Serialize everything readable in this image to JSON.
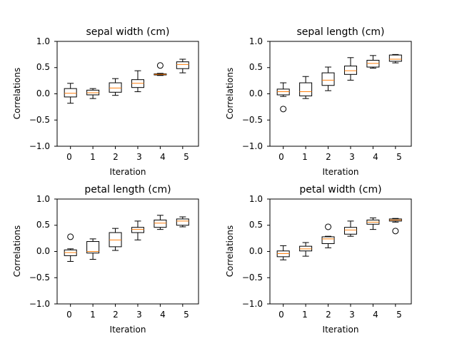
{
  "chart_data": [
    {
      "type": "box",
      "title": "sepal width (cm)",
      "xlabel": "Iteration",
      "ylabel": "Correlations",
      "categories": [
        "0",
        "1",
        "2",
        "3",
        "4",
        "5"
      ],
      "ylim": [
        -1.0,
        1.0
      ],
      "yticks": [
        "−1.0",
        "−0.5",
        "0.0",
        "0.5",
        "1.0"
      ],
      "grid": false,
      "boxes": [
        {
          "whislo": -0.18,
          "q1": -0.06,
          "median": 0.01,
          "q3": 0.1,
          "whishi": 0.2,
          "fliers": []
        },
        {
          "whislo": -0.09,
          "q1": -0.02,
          "median": 0.02,
          "q3": 0.07,
          "whishi": 0.1,
          "fliers": []
        },
        {
          "whislo": -0.03,
          "q1": 0.03,
          "median": 0.11,
          "q3": 0.21,
          "whishi": 0.29,
          "fliers": []
        },
        {
          "whislo": 0.04,
          "q1": 0.12,
          "median": 0.2,
          "q3": 0.27,
          "whishi": 0.44,
          "fliers": []
        },
        {
          "whislo": 0.35,
          "q1": 0.36,
          "median": 0.37,
          "q3": 0.38,
          "whishi": 0.39,
          "fliers": [
            0.54
          ]
        },
        {
          "whislo": 0.4,
          "q1": 0.48,
          "median": 0.56,
          "q3": 0.61,
          "whishi": 0.66,
          "fliers": []
        }
      ]
    },
    {
      "type": "box",
      "title": "sepal length (cm)",
      "xlabel": "Iteration",
      "ylabel": "Correlations",
      "categories": [
        "0",
        "1",
        "2",
        "3",
        "4",
        "5"
      ],
      "ylim": [
        -1.0,
        1.0
      ],
      "yticks": [
        "−1.0",
        "−0.5",
        "0.0",
        "0.5",
        "1.0"
      ],
      "grid": false,
      "boxes": [
        {
          "whislo": -0.05,
          "q1": -0.02,
          "median": 0.04,
          "q3": 0.09,
          "whishi": 0.21,
          "fliers": [
            -0.29
          ]
        },
        {
          "whislo": -0.09,
          "q1": -0.04,
          "median": 0.04,
          "q3": 0.21,
          "whishi": 0.33,
          "fliers": []
        },
        {
          "whislo": 0.06,
          "q1": 0.16,
          "median": 0.26,
          "q3": 0.4,
          "whishi": 0.51,
          "fliers": []
        },
        {
          "whislo": 0.26,
          "q1": 0.37,
          "median": 0.44,
          "q3": 0.53,
          "whishi": 0.69,
          "fliers": []
        },
        {
          "whislo": 0.49,
          "q1": 0.51,
          "median": 0.58,
          "q3": 0.64,
          "whishi": 0.73,
          "fliers": []
        },
        {
          "whislo": 0.59,
          "q1": 0.62,
          "median": 0.66,
          "q3": 0.74,
          "whishi": 0.75,
          "fliers": []
        }
      ]
    },
    {
      "type": "box",
      "title": "petal length (cm)",
      "xlabel": "Iteration",
      "ylabel": "Correlations",
      "categories": [
        "0",
        "1",
        "2",
        "3",
        "4",
        "5"
      ],
      "ylim": [
        -1.0,
        1.0
      ],
      "yticks": [
        "−1.0",
        "−0.5",
        "0.0",
        "0.5",
        "1.0"
      ],
      "grid": false,
      "boxes": [
        {
          "whislo": -0.19,
          "q1": -0.08,
          "median": -0.02,
          "q3": 0.03,
          "whishi": 0.05,
          "fliers": [
            0.28
          ]
        },
        {
          "whislo": -0.15,
          "q1": -0.03,
          "median": 0.0,
          "q3": 0.19,
          "whishi": 0.24,
          "fliers": []
        },
        {
          "whislo": 0.02,
          "q1": 0.09,
          "median": 0.22,
          "q3": 0.36,
          "whishi": 0.44,
          "fliers": []
        },
        {
          "whislo": 0.22,
          "q1": 0.36,
          "median": 0.42,
          "q3": 0.46,
          "whishi": 0.58,
          "fliers": []
        },
        {
          "whislo": 0.42,
          "q1": 0.46,
          "median": 0.54,
          "q3": 0.6,
          "whishi": 0.69,
          "fliers": []
        },
        {
          "whislo": 0.47,
          "q1": 0.5,
          "median": 0.58,
          "q3": 0.62,
          "whishi": 0.66,
          "fliers": []
        }
      ]
    },
    {
      "type": "box",
      "title": "petal width (cm)",
      "xlabel": "Iteration",
      "ylabel": "Correlations",
      "categories": [
        "0",
        "1",
        "2",
        "3",
        "4",
        "5"
      ],
      "ylim": [
        -1.0,
        1.0
      ],
      "yticks": [
        "−1.0",
        "−0.5",
        "0.0",
        "0.5",
        "1.0"
      ],
      "grid": false,
      "boxes": [
        {
          "whislo": -0.16,
          "q1": -0.1,
          "median": -0.04,
          "q3": 0.01,
          "whishi": 0.11,
          "fliers": []
        },
        {
          "whislo": -0.09,
          "q1": 0.01,
          "median": 0.05,
          "q3": 0.1,
          "whishi": 0.17,
          "fliers": []
        },
        {
          "whislo": 0.07,
          "q1": 0.15,
          "median": 0.24,
          "q3": 0.28,
          "whishi": 0.29,
          "fliers": [
            0.47
          ]
        },
        {
          "whislo": 0.29,
          "q1": 0.33,
          "median": 0.41,
          "q3": 0.46,
          "whishi": 0.58,
          "fliers": []
        },
        {
          "whislo": 0.42,
          "q1": 0.52,
          "median": 0.56,
          "q3": 0.6,
          "whishi": 0.64,
          "fliers": []
        },
        {
          "whislo": 0.56,
          "q1": 0.58,
          "median": 0.6,
          "q3": 0.62,
          "whishi": 0.63,
          "fliers": [
            0.39
          ]
        }
      ]
    }
  ],
  "colors": {
    "box": "#000000",
    "median": "#ff7f0e",
    "axes": "#000000",
    "background": "#ffffff"
  }
}
